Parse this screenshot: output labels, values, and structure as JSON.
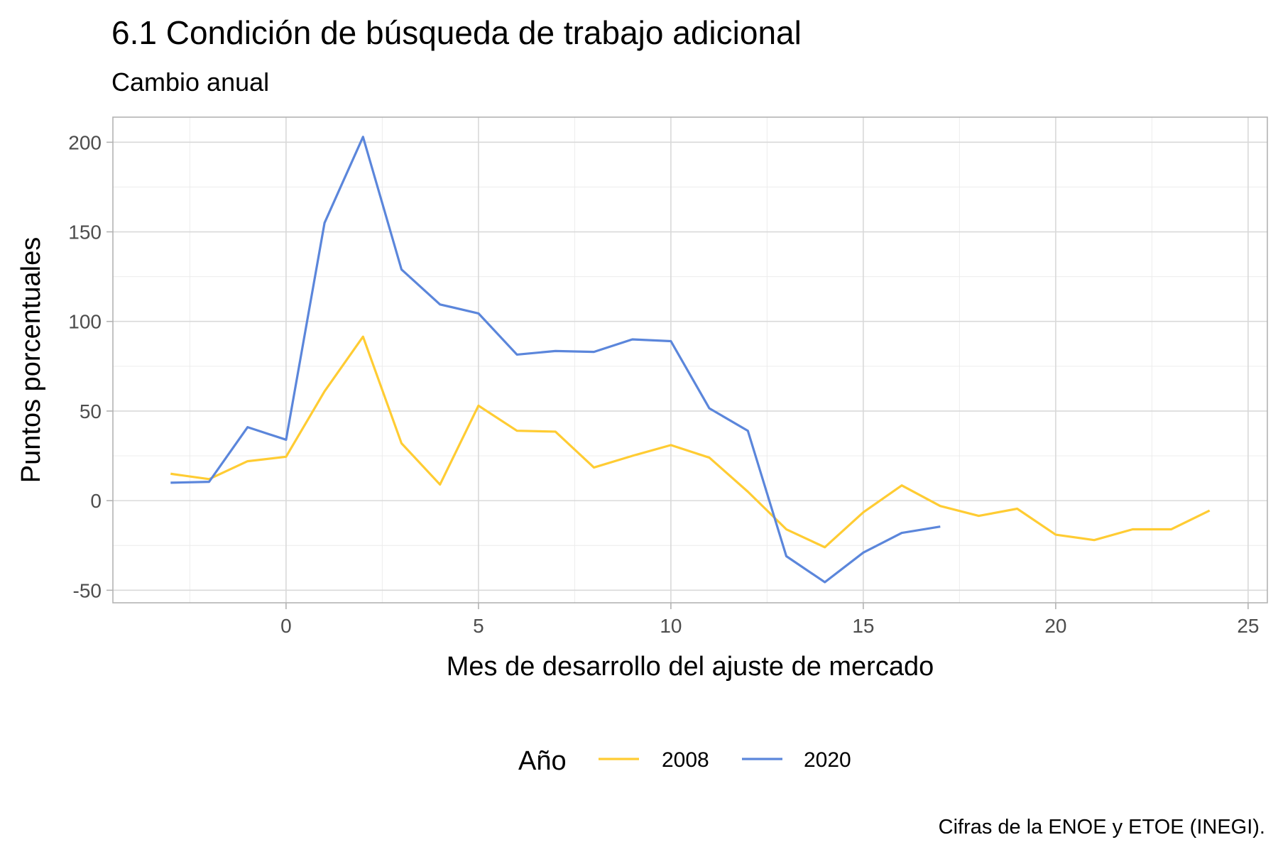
{
  "chart_data": {
    "type": "line",
    "title": "6.1 Condición de búsqueda de trabajo adicional",
    "subtitle": "Cambio anual",
    "xlabel": "Mes de desarrollo del ajuste de mercado",
    "ylabel": "Puntos porcentuales",
    "caption": "Cifras de la ENOE y ETOE (INEGI).",
    "legend_title": "Año",
    "legend_position": "bottom",
    "grid": true,
    "xlim": [
      -4.5,
      25.5
    ],
    "ylim": [
      -57,
      214
    ],
    "x_ticks": [
      0,
      5,
      10,
      15,
      20,
      25
    ],
    "y_ticks": [
      -50,
      0,
      50,
      100,
      150,
      200
    ],
    "x_tick_labels": [
      "0",
      "5",
      "10",
      "15",
      "20",
      "25"
    ],
    "y_tick_labels": [
      "-50",
      "0",
      "50",
      "100",
      "150",
      "200"
    ],
    "series": [
      {
        "name": "2008",
        "color": "#FFCC33",
        "x": [
          -3,
          -2,
          -1,
          0,
          1,
          2,
          3,
          4,
          5,
          6,
          7,
          8,
          9,
          10,
          11,
          12,
          13,
          14,
          15,
          16,
          17,
          18,
          19,
          20,
          21,
          22,
          23,
          24
        ],
        "y": [
          15,
          12,
          22,
          24.5,
          61,
          91.5,
          32,
          9,
          53,
          39,
          38.5,
          18.5,
          25,
          31,
          24,
          5,
          -16,
          -26,
          -6.5,
          8.5,
          -3,
          -8.5,
          -4.5,
          -19,
          -22,
          -16,
          -16,
          -5.5
        ]
      },
      {
        "name": "2020",
        "color": "#5B86DB",
        "x": [
          -3,
          -2,
          -1,
          0,
          1,
          2,
          3,
          4,
          5,
          6,
          7,
          8,
          9,
          10,
          11,
          12,
          13,
          14,
          15,
          16,
          17
        ],
        "y": [
          10,
          10.5,
          41,
          34,
          155,
          203,
          129,
          109.5,
          104.5,
          81.5,
          83.5,
          83,
          90,
          89,
          51.5,
          39,
          -31,
          -45.5,
          -29,
          -18,
          -14.5
        ]
      }
    ]
  }
}
